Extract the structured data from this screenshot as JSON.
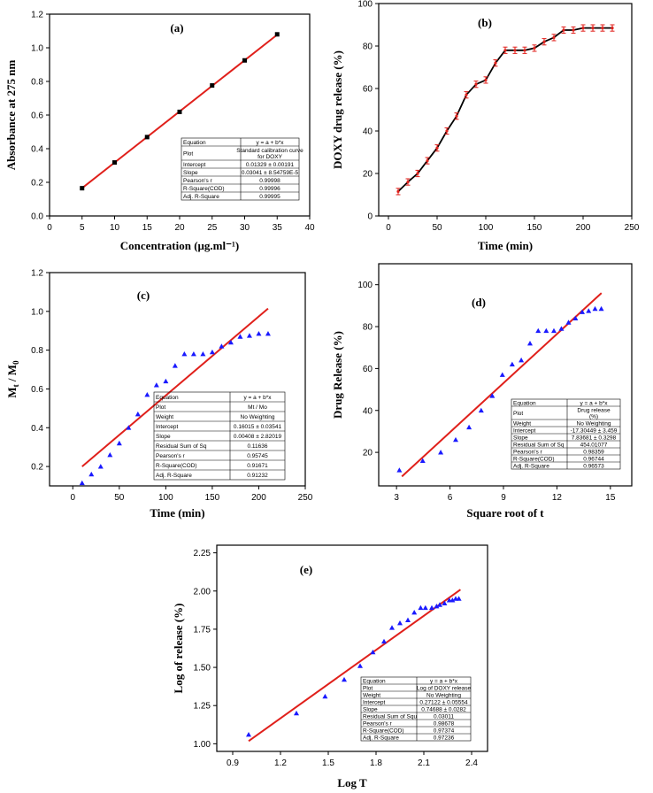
{
  "chart_data": [
    {
      "panel": "(a)",
      "type": "scatter",
      "xlabel": "Concentration (μg.ml⁻¹)",
      "ylabel": "Absorbance at 275 nm",
      "xlim": [
        0,
        40
      ],
      "ylim": [
        0,
        1.2
      ],
      "xticks": [
        0,
        5,
        10,
        15,
        20,
        25,
        30,
        35,
        40
      ],
      "xtick_labels": [
        "0",
        "5",
        "10",
        "15",
        "20",
        "25",
        "30",
        "35",
        "40"
      ],
      "yticks": [
        0,
        0.2,
        0.4,
        0.6,
        0.8,
        1.0,
        1.2
      ],
      "ytick_labels": [
        "0.0",
        "0.2",
        "0.4",
        "0.6",
        "0.8",
        "1.0",
        "1.2"
      ],
      "marker": "square",
      "marker_color": "#000000",
      "x": [
        5,
        10,
        15,
        20,
        25,
        30,
        35
      ],
      "y": [
        0.165,
        0.318,
        0.469,
        0.619,
        0.776,
        0.925,
        1.08
      ],
      "fit_line": {
        "x": [
          5,
          35
        ],
        "y": [
          0.1654,
          1.0777
        ],
        "color": "#e0201b"
      },
      "stats_table": [
        [
          "Equation",
          "y = a + b*x"
        ],
        [
          "Plot",
          "Standard calibration curve for DOXY"
        ],
        [
          "Intercept",
          "0.01329 ± 0.00191"
        ],
        [
          "Slope",
          "0.03041 ± 8.54759E-5"
        ],
        [
          "Pearson's r",
          "0.99998"
        ],
        [
          "R-Square(COD)",
          "0.99996"
        ],
        [
          "Adj. R-Square",
          "0.99995"
        ]
      ]
    },
    {
      "panel": "(b)",
      "type": "line",
      "xlabel": "Time (min)",
      "ylabel": "DOXY drug release (%)",
      "xlim": [
        -10,
        250
      ],
      "ylim": [
        0,
        100
      ],
      "xticks": [
        0,
        50,
        100,
        150,
        200,
        250
      ],
      "xtick_labels": [
        "0",
        "50",
        "100",
        "150",
        "200",
        "250"
      ],
      "yticks": [
        0,
        20,
        40,
        60,
        80,
        100
      ],
      "ytick_labels": [
        "0",
        "20",
        "40",
        "60",
        "80",
        "100"
      ],
      "line_color": "#000000",
      "marker_color": "#e0201b",
      "x": [
        10,
        20,
        30,
        40,
        50,
        60,
        70,
        80,
        90,
        100,
        110,
        120,
        130,
        140,
        150,
        160,
        170,
        180,
        190,
        200,
        210,
        220,
        230
      ],
      "y": [
        11.5,
        16,
        20,
        26,
        32,
        40,
        47,
        57,
        62,
        64,
        72,
        78,
        78,
        78,
        79,
        82,
        84,
        87.5,
        87.5,
        88.5,
        88.5,
        88.5,
        88.5
      ],
      "error": [
        1.5,
        1.5,
        1.5,
        1.5,
        1.5,
        1.5,
        1.5,
        1.5,
        1.5,
        1.5,
        1.5,
        1.5,
        1.5,
        1.5,
        1.5,
        1.5,
        1.5,
        1.5,
        1.5,
        1.5,
        1.5,
        1.5,
        1.5
      ]
    },
    {
      "panel": "(c)",
      "type": "scatter",
      "xlabel": "Time (min)",
      "ylabel": "Mt / M0",
      "ylabel_main": "M",
      "ylabel_sub1": "t",
      "ylabel_mid": " / M",
      "ylabel_sub2": "0",
      "xlim": [
        -25,
        250
      ],
      "ylim": [
        0.1,
        1.2
      ],
      "xticks": [
        0,
        50,
        100,
        150,
        200,
        250
      ],
      "xtick_labels": [
        "0",
        "50",
        "100",
        "150",
        "200",
        "250"
      ],
      "yticks": [
        0.2,
        0.4,
        0.6,
        0.8,
        1.0,
        1.2
      ],
      "ytick_labels": [
        "0.2",
        "0.4",
        "0.6",
        "0.8",
        "1.0",
        "1.2"
      ],
      "marker": "triangle",
      "marker_color": "#1a1aff",
      "x": [
        10,
        20,
        30,
        40,
        50,
        60,
        70,
        80,
        90,
        100,
        110,
        120,
        130,
        140,
        150,
        160,
        170,
        180,
        190,
        200,
        210
      ],
      "y": [
        0.115,
        0.16,
        0.2,
        0.26,
        0.32,
        0.4,
        0.47,
        0.57,
        0.62,
        0.64,
        0.72,
        0.78,
        0.78,
        0.78,
        0.79,
        0.82,
        0.84,
        0.87,
        0.875,
        0.885,
        0.885
      ],
      "fit_line": {
        "x": [
          10,
          210
        ],
        "y": [
          0.2,
          1.0144
        ],
        "color": "#e0201b"
      },
      "stats_table": [
        [
          "Equation",
          "y = a + b*x"
        ],
        [
          "Plot",
          "Mt / Mo"
        ],
        [
          "Weight",
          "No Weighting"
        ],
        [
          "Intercept",
          "0.16015 ± 0.03541"
        ],
        [
          "Slope",
          "0.00408 ± 2.82019"
        ],
        [
          "Residual Sum of Sq",
          "0.11636"
        ],
        [
          "Pearson's r",
          "0.95745"
        ],
        [
          "R-Square(COD)",
          "0.91671"
        ],
        [
          "Adj. R-Square",
          "0.91232"
        ]
      ]
    },
    {
      "panel": "(d)",
      "type": "scatter",
      "xlabel": "Square root of t",
      "ylabel": "Drug Release (%)",
      "xlim": [
        2,
        16.2
      ],
      "ylim": [
        4,
        110
      ],
      "xticks": [
        3,
        6,
        9,
        12,
        15
      ],
      "xtick_labels": [
        "3",
        "6",
        "9",
        "12",
        "15"
      ],
      "yticks": [
        20,
        40,
        60,
        80,
        100
      ],
      "ytick_labels": [
        "20",
        "40",
        "60",
        "80",
        "100"
      ],
      "marker": "triangle",
      "marker_color": "#1a1aff",
      "x": [
        3.16,
        4.47,
        5.48,
        6.32,
        7.07,
        7.75,
        8.37,
        8.94,
        9.49,
        10.0,
        10.49,
        10.95,
        11.4,
        11.83,
        12.25,
        12.65,
        13.04,
        13.42,
        13.78,
        14.14,
        14.49
      ],
      "y": [
        11.5,
        16,
        20,
        26,
        32,
        40,
        47,
        57,
        62,
        64,
        72,
        78,
        78,
        78,
        79,
        82,
        84,
        87,
        87.5,
        88.5,
        88.5
      ],
      "fit_line": {
        "x": [
          3.3,
          14.5
        ],
        "y": [
          8.5,
          96
        ],
        "color": "#e0201b"
      },
      "stats_table": [
        [
          "Equation",
          "y = a + b*x"
        ],
        [
          "Plot",
          "Drug release (%)"
        ],
        [
          "Weight",
          "No Weighting"
        ],
        [
          "Intercept",
          "-17.30449 ± 3.459"
        ],
        [
          "Slope",
          "7.83681 ± 0.3298"
        ],
        [
          "Residual Sum of Sq",
          "454.01077"
        ],
        [
          "Pearson's r",
          "0.98359"
        ],
        [
          "R-Square(COD)",
          "0.96744"
        ],
        [
          "Adj. R-Square",
          "0.96573"
        ]
      ]
    },
    {
      "panel": "(e)",
      "type": "scatter",
      "xlabel": "Log T",
      "ylabel": "Log of release (%)",
      "xlim": [
        0.8,
        2.5
      ],
      "ylim": [
        0.95,
        2.3
      ],
      "xticks": [
        0.9,
        1.2,
        1.5,
        1.8,
        2.1,
        2.4
      ],
      "xtick_labels": [
        "0.9",
        "1.2",
        "1.5",
        "1.8",
        "2.1",
        "2.4"
      ],
      "yticks": [
        1.0,
        1.25,
        1.5,
        1.75,
        2.0,
        2.25
      ],
      "ytick_labels": [
        "1.00",
        "1.25",
        "1.50",
        "1.75",
        "2.00",
        "2.25"
      ],
      "marker": "triangle",
      "marker_color": "#1a1aff",
      "x": [
        1.0,
        1.3,
        1.48,
        1.6,
        1.7,
        1.78,
        1.85,
        1.9,
        1.95,
        2.0,
        2.04,
        2.08,
        2.11,
        2.15,
        2.18,
        2.2,
        2.23,
        2.26,
        2.28,
        2.3,
        2.32
      ],
      "y": [
        1.06,
        1.2,
        1.31,
        1.42,
        1.51,
        1.6,
        1.67,
        1.76,
        1.79,
        1.81,
        1.86,
        1.89,
        1.89,
        1.89,
        1.9,
        1.91,
        1.92,
        1.94,
        1.94,
        1.95,
        1.95
      ],
      "fit_line": {
        "x": [
          1.0,
          2.33
        ],
        "y": [
          1.018,
          2.009
        ],
        "color": "#e0201b"
      },
      "stats_table": [
        [
          "Equation",
          "y = a + b*x"
        ],
        [
          "Plot",
          "Log of DOXY release"
        ],
        [
          "Weight",
          "No Weighting"
        ],
        [
          "Intercept",
          "0.27122 ± 0.05554"
        ],
        [
          "Slope",
          "0.74688 ± 0.0282"
        ],
        [
          "Residual Sum of Squ",
          "0.03011"
        ],
        [
          "Pearson's r",
          "0.98678"
        ],
        [
          "R-Square(COD)",
          "0.97374"
        ],
        [
          "Adj. R-Square",
          "0.97236"
        ]
      ]
    }
  ]
}
